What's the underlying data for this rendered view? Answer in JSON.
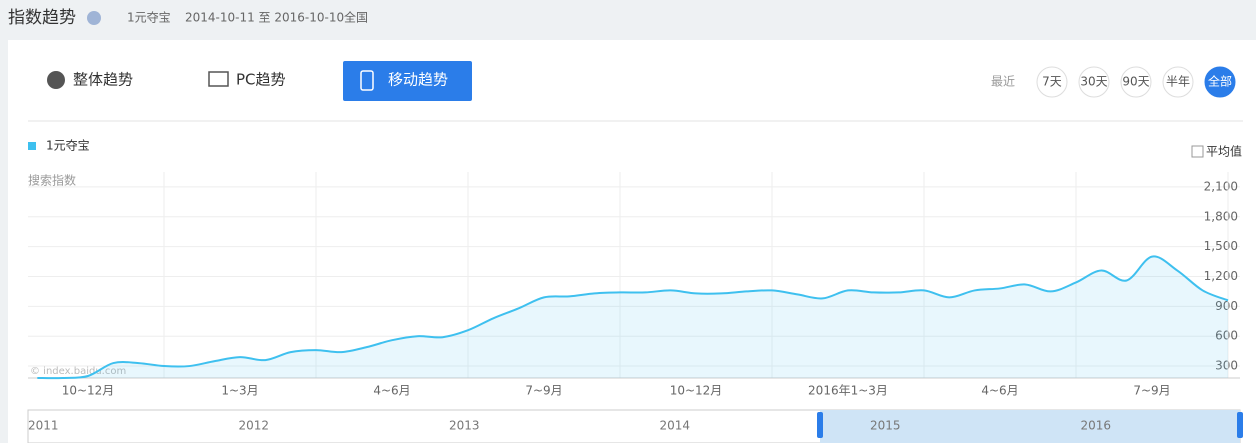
{
  "header": {
    "title": "指数趋势",
    "keyword": "1元夺宝",
    "date_range": "2014-10-11 至 2016-10-10",
    "region": "全国"
  },
  "tabs": [
    "整体趋势",
    "PC趋势",
    "移动趋势"
  ],
  "range_buttons": {
    "label": "最近",
    "options": [
      "7天",
      "30天",
      "90天",
      "半年",
      "全部"
    ]
  },
  "average_toggle": "平均值",
  "watermark": "© index.baidu.com",
  "navigator": {
    "years": [
      "2011",
      "2012",
      "2013",
      "2014",
      "2015",
      "2016"
    ]
  },
  "chart_data": {
    "type": "line",
    "y_label": "搜索指数",
    "categories": [
      null,
      null,
      "10~12月",
      null,
      null,
      null,
      null,
      null,
      "1~3月",
      null,
      null,
      null,
      null,
      null,
      "4~6月",
      null,
      null,
      null,
      null,
      null,
      "7~9月",
      null,
      null,
      null,
      null,
      null,
      "10~12月",
      null,
      null,
      null,
      null,
      null,
      "2016年1~3月",
      null,
      null,
      null,
      null,
      null,
      "4~6月",
      null,
      null,
      null,
      null,
      null,
      "7~9月",
      null,
      null,
      null
    ],
    "series": [
      {
        "name": "1元夺宝",
        "color": "#3ec0ef",
        "values": [
          180,
          180,
          200,
          330,
          330,
          300,
          300,
          350,
          390,
          360,
          440,
          460,
          440,
          490,
          560,
          600,
          590,
          660,
          780,
          880,
          990,
          1000,
          1030,
          1040,
          1040,
          1060,
          1030,
          1030,
          1050,
          1060,
          1020,
          980,
          1060,
          1040,
          1040,
          1060,
          990,
          1060,
          1080,
          1120,
          1050,
          1140,
          1260,
          1160,
          1400,
          1260,
          1060,
          960
        ]
      }
    ],
    "ylim": [
      180,
      2250
    ],
    "yticks": [
      300,
      600,
      900,
      {
        "value": 1200,
        "label": "1,200"
      },
      {
        "value": 1500,
        "label": "1,500"
      },
      {
        "value": 1800,
        "label": "1,800"
      },
      {
        "value": 2100,
        "label": "2,100"
      }
    ],
    "grid": true
  }
}
